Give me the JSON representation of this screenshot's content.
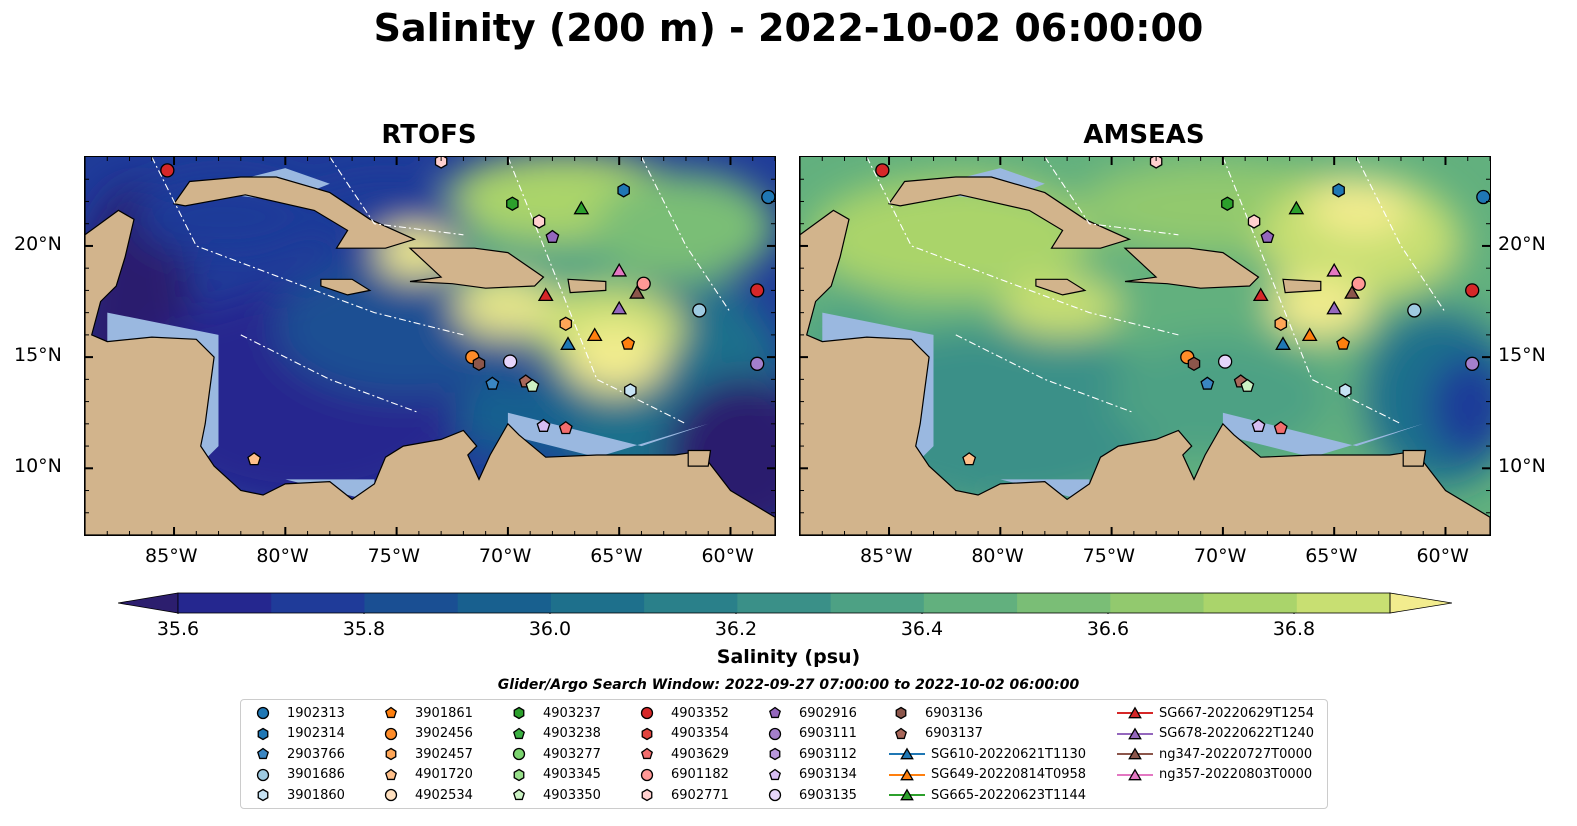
{
  "title": "Salinity (200 m) - 2022-10-02 06:00:00",
  "panels": [
    {
      "title": "RTOFS"
    },
    {
      "title": "AMSEAS"
    }
  ],
  "lon_ticks": [
    "85°W",
    "80°W",
    "75°W",
    "70°W",
    "65°W",
    "60°W"
  ],
  "lat_ticks": [
    "20°N",
    "15°N",
    "10°N"
  ],
  "colorbar": {
    "ticks": [
      "35.6",
      "35.8",
      "36.0",
      "36.2",
      "36.4",
      "36.6",
      "36.8"
    ],
    "label": "Salinity (psu)",
    "colors": [
      "#2c1e6e",
      "#25278f",
      "#1f3b99",
      "#1a4f93",
      "#18608f",
      "#1e708c",
      "#2a808a",
      "#3a9088",
      "#4da184",
      "#62b07e",
      "#7abe76",
      "#92c96e",
      "#aad46b",
      "#c8df72",
      "#f2ec8e"
    ]
  },
  "search_window": "Glider/Argo Search Window: 2022-09-27 07:00:00 to 2022-10-02 06:00:00",
  "legend": [
    {
      "label": "1902313",
      "shape": "circle",
      "color": "#1f77b4"
    },
    {
      "label": "1902314",
      "shape": "hexagon",
      "color": "#1f77b4"
    },
    {
      "label": "2903766",
      "shape": "pentagon",
      "color": "#3a86c2"
    },
    {
      "label": "3901686",
      "shape": "circle",
      "color": "#9ecae1"
    },
    {
      "label": "3901860",
      "shape": "hexagon",
      "color": "#c6e2f3"
    },
    {
      "label": "3901861",
      "shape": "pentagon",
      "color": "#ff7f0e"
    },
    {
      "label": "3902456",
      "shape": "circle",
      "color": "#ff8c29"
    },
    {
      "label": "3902457",
      "shape": "hexagon",
      "color": "#ffa657"
    },
    {
      "label": "4901720",
      "shape": "pentagon",
      "color": "#ffc08a"
    },
    {
      "label": "4902534",
      "shape": "circle",
      "color": "#ffe0bf"
    },
    {
      "label": "4903237",
      "shape": "hexagon",
      "color": "#2ca02c"
    },
    {
      "label": "4903238",
      "shape": "pentagon",
      "color": "#3cb043"
    },
    {
      "label": "4903277",
      "shape": "circle",
      "color": "#7bd46f"
    },
    {
      "label": "4903345",
      "shape": "hexagon",
      "color": "#98df8a"
    },
    {
      "label": "4903350",
      "shape": "pentagon",
      "color": "#ccf2c4"
    },
    {
      "label": "4903352",
      "shape": "circle",
      "color": "#d62728"
    },
    {
      "label": "4903354",
      "shape": "hexagon",
      "color": "#e0443f"
    },
    {
      "label": "4903629",
      "shape": "pentagon",
      "color": "#f26d6d"
    },
    {
      "label": "6901182",
      "shape": "circle",
      "color": "#ff9896"
    },
    {
      "label": "6902771",
      "shape": "hexagon",
      "color": "#ffd0cf"
    },
    {
      "label": "6902916",
      "shape": "pentagon",
      "color": "#9467bd"
    },
    {
      "label": "6903111",
      "shape": "circle",
      "color": "#a47fcb"
    },
    {
      "label": "6903112",
      "shape": "hexagon",
      "color": "#b898dc"
    },
    {
      "label": "6903134",
      "shape": "pentagon",
      "color": "#d6bdf2"
    },
    {
      "label": "6903135",
      "shape": "circle",
      "color": "#e6d5fb"
    },
    {
      "label": "6903136",
      "shape": "hexagon",
      "color": "#8c564b"
    },
    {
      "label": "6903137",
      "shape": "pentagon",
      "color": "#a8675a"
    },
    {
      "label": "SG610-20220621T1130",
      "shape": "triangle",
      "color": "#1f77b4",
      "line": true
    },
    {
      "label": "SG649-20220814T0958",
      "shape": "triangle",
      "color": "#ff7f0e",
      "line": true
    },
    {
      "label": "SG665-20220623T1144",
      "shape": "triangle",
      "color": "#2ca02c",
      "line": true
    },
    {
      "label": "SG667-20220629T1254",
      "shape": "triangle",
      "color": "#d62728",
      "line": true
    },
    {
      "label": "SG678-20220622T1240",
      "shape": "triangle",
      "color": "#9467bd",
      "line": true
    },
    {
      "label": "ng347-20220727T0000",
      "shape": "triangle",
      "color": "#8c564b",
      "line": true
    },
    {
      "label": "ng357-20220803T0000",
      "shape": "triangle",
      "color": "#e377c2",
      "line": true
    }
  ],
  "map_colors": {
    "land": "#d2b48c",
    "shallow": "#9ab8e0",
    "coast": "#000000"
  }
}
